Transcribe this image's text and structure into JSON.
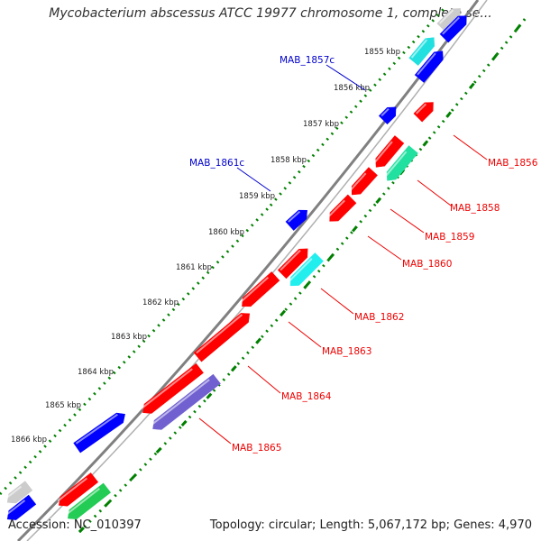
{
  "title": "Mycobacterium abscessus ATCC 19977 chromosome 1, complete se...",
  "footer": {
    "accession": "Accession: NC_010397",
    "topology": "Topology: circular; Length: 5,067,172 bp; Genes: 4,970"
  },
  "colors": {
    "backbone": "#808080",
    "tick_dots": "#008000",
    "gene_forward": "#0000ff",
    "gene_reverse": "#ff0000",
    "label_forward": "#0000cc",
    "label_reverse": "#ee0000"
  },
  "ticks": [
    "1855 kbp",
    "1856 kbp",
    "1857 kbp",
    "1858 kbp",
    "1859 kbp",
    "1860 kbp",
    "1861 kbp",
    "1862 kbp",
    "1863 kbp",
    "1864 kbp",
    "1865 kbp",
    "1866 kbp"
  ],
  "labels_forward": [
    "MAB_1857c",
    "MAB_1861c"
  ],
  "labels_reverse": [
    "MAB_1856",
    "MAB_1858",
    "MAB_1859",
    "MAB_1860",
    "MAB_1862",
    "MAB_1863",
    "MAB_1864",
    "MAB_1865"
  ]
}
